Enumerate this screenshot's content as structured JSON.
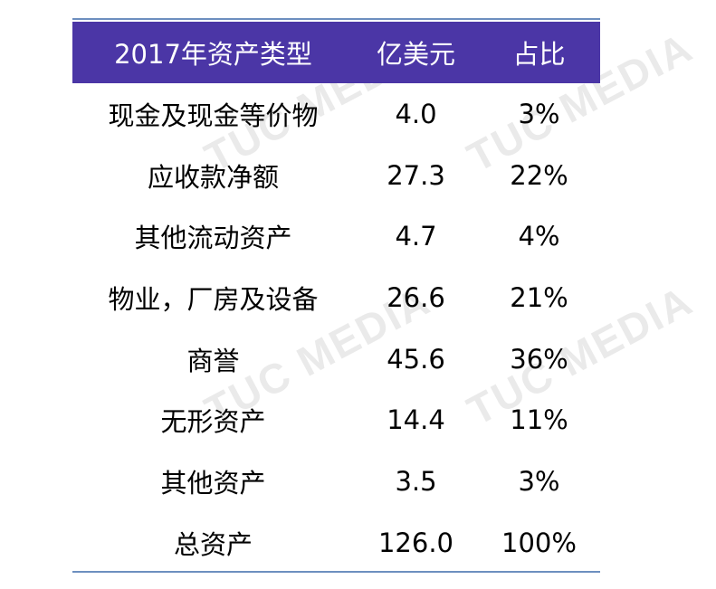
{
  "table": {
    "headers": [
      "2017年资产类型",
      "亿美元",
      "占比"
    ],
    "rows": [
      {
        "type": "现金及现金等价物",
        "amount": "4.0",
        "share": "3%"
      },
      {
        "type": "应收款净额",
        "amount": "27.3",
        "share": "22%"
      },
      {
        "type": "其他流动资产",
        "amount": "4.7",
        "share": "4%"
      },
      {
        "type": "物业，厂房及设备",
        "amount": "26.6",
        "share": "21%"
      },
      {
        "type": "商誉",
        "amount": "45.6",
        "share": "36%"
      },
      {
        "type": "无形资产",
        "amount": "14.4",
        "share": "11%"
      },
      {
        "type": "其他资产",
        "amount": "3.5",
        "share": "3%"
      },
      {
        "type": "总资产",
        "amount": "126.0",
        "share": "100%"
      }
    ]
  },
  "watermark": {
    "text": "TUC MEDIA"
  },
  "colors": {
    "header_bg": "#4b36a6",
    "rule": "#6d8fbf"
  }
}
